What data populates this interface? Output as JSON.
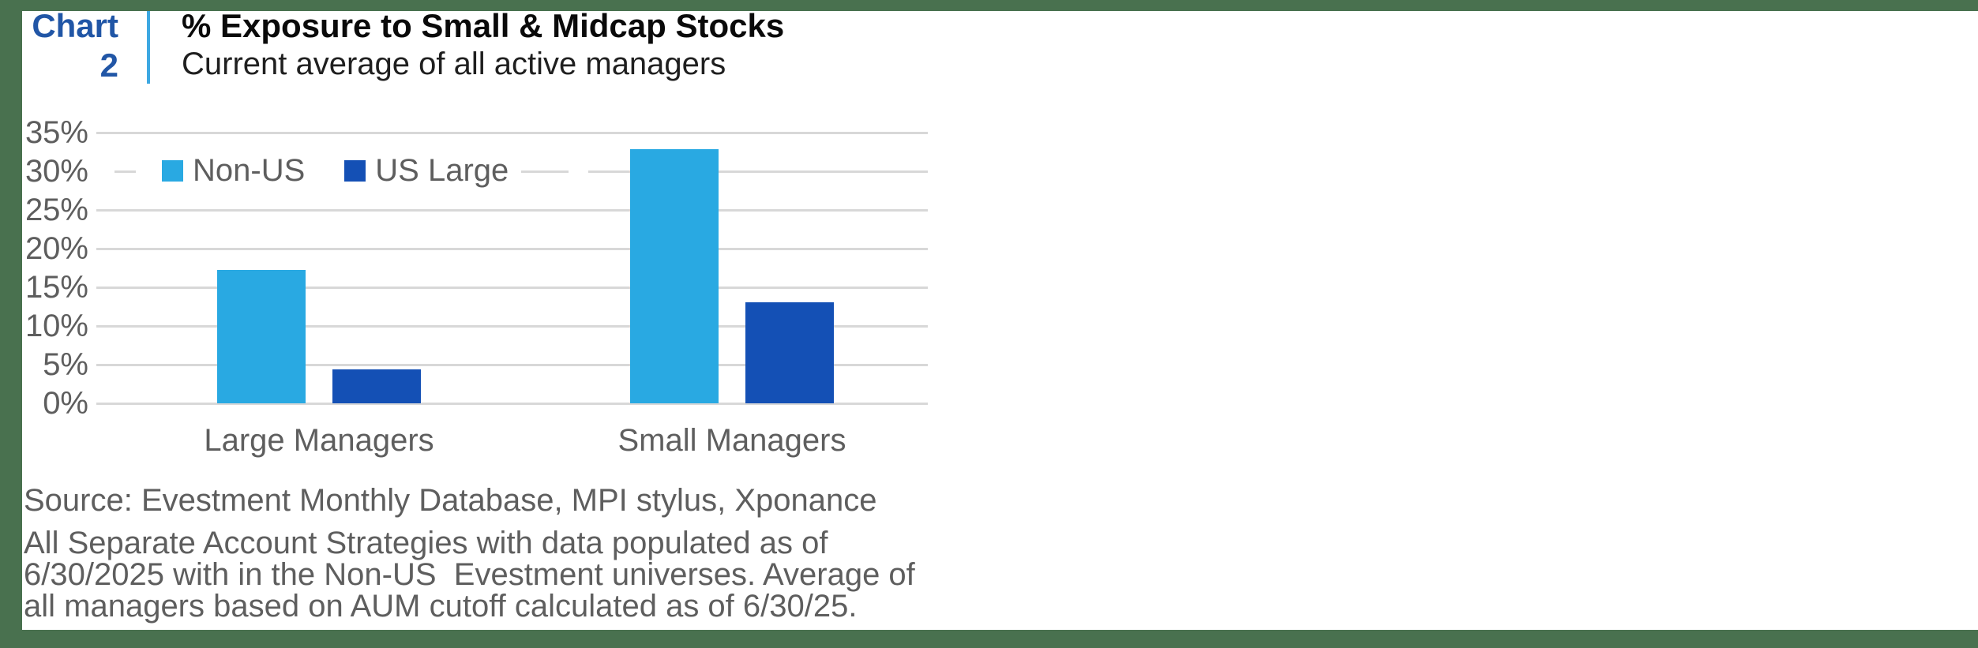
{
  "frame": {
    "border_color": "#49714F"
  },
  "header": {
    "chart_label": "Chart",
    "chart_number": "2",
    "label_color": "#2156A6",
    "divider_color": "#3DA8E2",
    "title": "% Exposure to Small & Midcap Stocks",
    "subtitle": "Current average of all active managers"
  },
  "chart_data": {
    "type": "bar",
    "title": "% Exposure to Small & Midcap Stocks",
    "subtitle": "Current average of all active managers",
    "categories": [
      "Large Managers",
      "Small Managers"
    ],
    "series": [
      {
        "name": "Non-US",
        "color": "#29A9E2",
        "values": [
          17.2,
          32.9
        ]
      },
      {
        "name": "US Large",
        "color": "#1450B5",
        "values": [
          4.4,
          13.1
        ]
      }
    ],
    "xlabel": "",
    "ylabel": "",
    "ylim": [
      0,
      35
    ],
    "ytick_step": 5,
    "ytick_labels": [
      "0%",
      "5%",
      "10%",
      "15%",
      "20%",
      "25%",
      "30%",
      "35%"
    ],
    "grid": true,
    "gridline_color": "#D8D8D8",
    "axis_text_color": "#5E5E5E",
    "legend_position": "inside-top-left",
    "unit": "percent"
  },
  "source": "Source: Evestment Monthly Database, MPI stylus, Xponance",
  "footnote": {
    "line1": "All Separate Account Strategies with data populated as of",
    "line2": "6/30/2025 with in the Non-US  Evestment universes. Average of",
    "line3": "all managers based on AUM cutoff calculated as of 6/30/25."
  }
}
